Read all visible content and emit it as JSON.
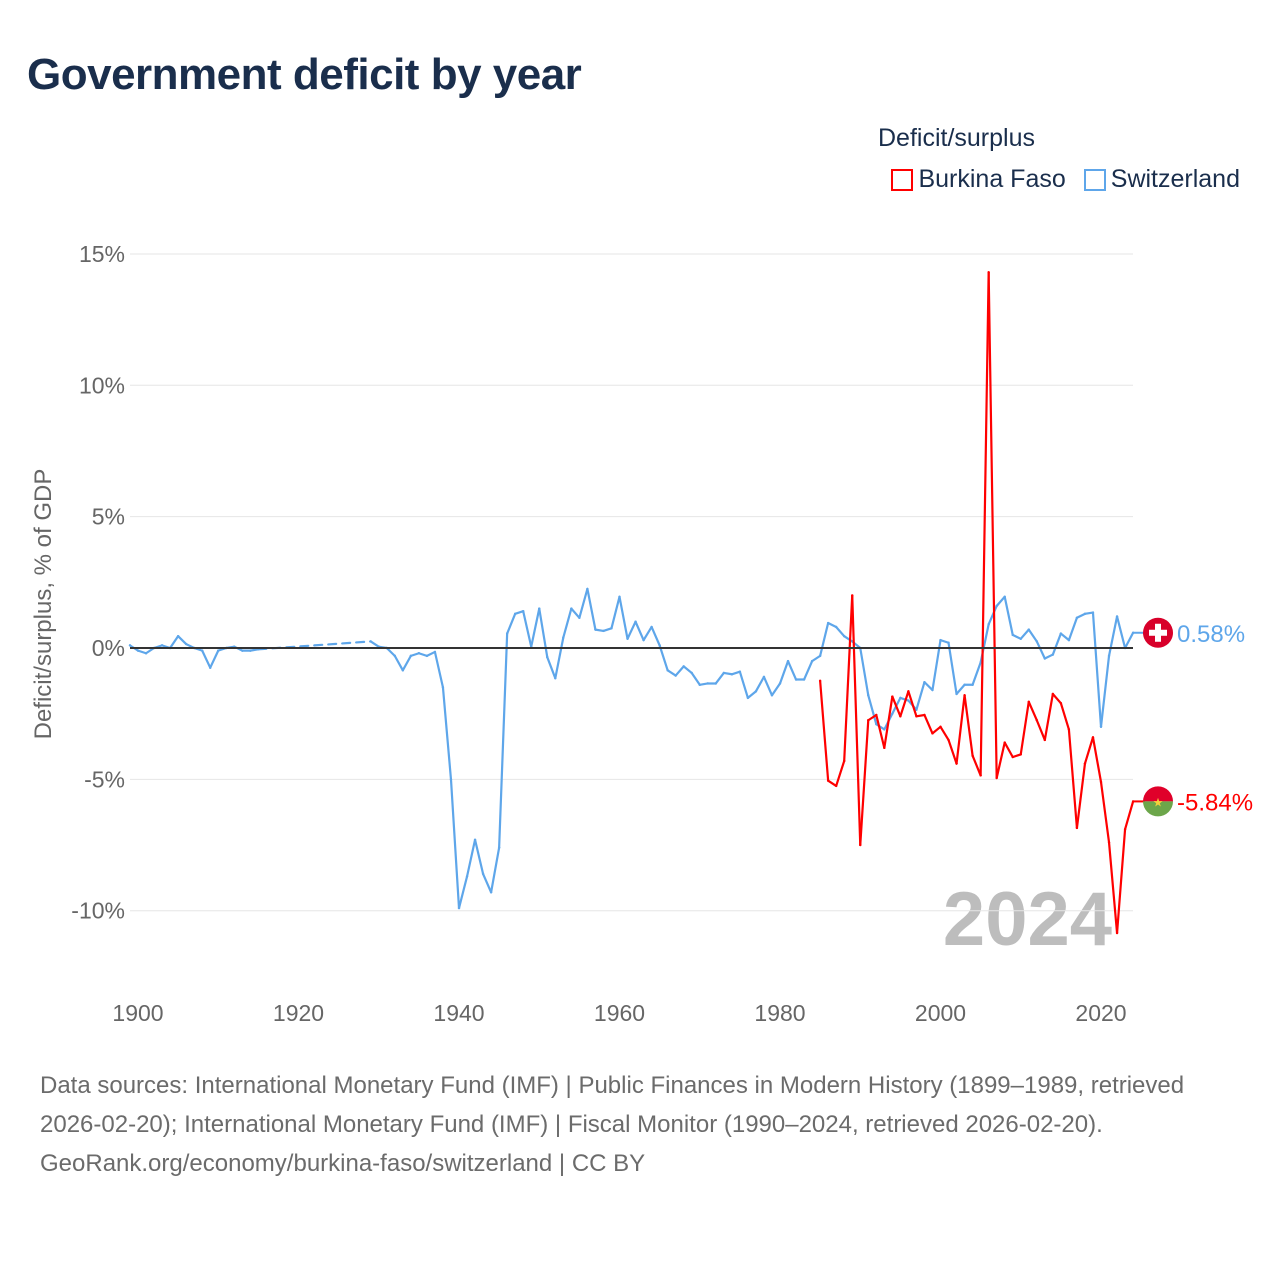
{
  "title": "Government deficit by year",
  "legend": {
    "title": "Deficit/surplus",
    "items": [
      {
        "label": "Burkina Faso",
        "color": "#ff0000"
      },
      {
        "label": "Switzerland",
        "color": "#5ea6ea"
      }
    ]
  },
  "chart_data": {
    "type": "line",
    "title": "Government deficit by year",
    "ylabel": "Deficit/surplus, % of GDP",
    "xlabel": "",
    "xlim": [
      1899,
      2024
    ],
    "ylim": [
      -12.5,
      15.5
    ],
    "x_ticks": [
      1900,
      1920,
      1940,
      1960,
      1980,
      2000,
      2020
    ],
    "y_ticks": [
      {
        "value": 15,
        "label": "15%"
      },
      {
        "value": 10,
        "label": "10%"
      },
      {
        "value": 5,
        "label": "5%"
      },
      {
        "value": 0,
        "label": "0%"
      },
      {
        "value": -5,
        "label": "-5%"
      },
      {
        "value": -10,
        "label": "-10%"
      }
    ],
    "grid": true,
    "legend_position": "top-right",
    "year_watermark": "2024",
    "series": [
      {
        "name": "Switzerland",
        "color": "#5ea6ea",
        "end_label": "0.58%",
        "flag": "switzerland-flag",
        "x": [
          1899,
          1900,
          1901,
          1902,
          1903,
          1904,
          1905,
          1906,
          1907,
          1908,
          1909,
          1910,
          1911,
          1912,
          1913,
          1914,
          1915,
          1929,
          1930,
          1931,
          1932,
          1933,
          1934,
          1935,
          1936,
          1937,
          1938,
          1939,
          1940,
          1941,
          1942,
          1943,
          1944,
          1945,
          1946,
          1947,
          1948,
          1949,
          1950,
          1951,
          1952,
          1953,
          1954,
          1955,
          1956,
          1957,
          1958,
          1959,
          1960,
          1961,
          1962,
          1963,
          1964,
          1965,
          1966,
          1967,
          1968,
          1969,
          1970,
          1971,
          1972,
          1973,
          1974,
          1975,
          1976,
          1977,
          1978,
          1979,
          1980,
          1981,
          1982,
          1983,
          1984,
          1985,
          1986,
          1987,
          1988,
          1989,
          1990,
          1991,
          1992,
          1993,
          1994,
          1995,
          1996,
          1997,
          1998,
          1999,
          2000,
          2001,
          2002,
          2003,
          2004,
          2005,
          2006,
          2007,
          2008,
          2009,
          2010,
          2011,
          2012,
          2013,
          2014,
          2015,
          2016,
          2017,
          2018,
          2019,
          2020,
          2021,
          2022,
          2023,
          2024
        ],
        "values": [
          0.1,
          -0.1,
          -0.2,
          0,
          0.1,
          0,
          0.45,
          0.15,
          0,
          -0.1,
          -0.75,
          -0.1,
          0,
          0.05,
          -0.1,
          -0.1,
          -0.05,
          0.25,
          0.05,
          0,
          -0.3,
          -0.85,
          -0.3,
          -0.2,
          -0.3,
          -0.15,
          -1.5,
          -5,
          -9.9,
          -8.7,
          -7.3,
          -8.6,
          -9.3,
          -7.6,
          0.55,
          1.3,
          1.4,
          0.05,
          1.5,
          -0.35,
          -1.15,
          0.4,
          1.5,
          1.15,
          2.25,
          0.7,
          0.65,
          0.75,
          1.95,
          0.35,
          1.0,
          0.3,
          0.8,
          0.1,
          -0.85,
          -1.05,
          -0.7,
          -0.95,
          -1.4,
          -1.35,
          -1.35,
          -0.95,
          -1.0,
          -0.9,
          -1.9,
          -1.65,
          -1.1,
          -1.8,
          -1.35,
          -0.5,
          -1.2,
          -1.2,
          -0.5,
          -0.3,
          0.95,
          0.8,
          0.45,
          0.25,
          0,
          -1.8,
          -2.9,
          -3.1,
          -2.5,
          -1.9,
          -2.0,
          -2.35,
          -1.3,
          -1.6,
          0.3,
          0.2,
          -1.75,
          -1.4,
          -1.4,
          -0.55,
          0.9,
          1.6,
          1.95,
          0.5,
          0.35,
          0.7,
          0.25,
          -0.4,
          -0.25,
          0.55,
          0.3,
          1.15,
          1.3,
          1.35,
          -3.0,
          -0.3,
          1.2,
          0,
          0.58
        ]
      },
      {
        "name": "Burkina Faso",
        "color": "#ff0000",
        "end_label": "-5.84%",
        "flag": "burkina-faso-flag",
        "x": [
          1985,
          1986,
          1987,
          1988,
          1989,
          1990,
          1991,
          1992,
          1993,
          1994,
          1995,
          1996,
          1997,
          1998,
          1999,
          2000,
          2001,
          2002,
          2003,
          2004,
          2005,
          2006,
          2007,
          2008,
          2009,
          2010,
          2011,
          2012,
          2013,
          2014,
          2015,
          2016,
          2017,
          2018,
          2019,
          2020,
          2021,
          2022,
          2023,
          2024
        ],
        "values": [
          -1.25,
          -5.05,
          -5.25,
          -4.3,
          2.0,
          -7.5,
          -2.75,
          -2.55,
          -3.8,
          -1.85,
          -2.6,
          -1.65,
          -2.6,
          -2.55,
          -3.25,
          -3.0,
          -3.5,
          -4.4,
          -1.8,
          -4.1,
          -4.85,
          14.3,
          -4.95,
          -3.6,
          -4.15,
          -4.05,
          -2.05,
          -2.75,
          -3.5,
          -1.75,
          -2.1,
          -3.1,
          -6.85,
          -4.4,
          -3.4,
          -5.1,
          -7.4,
          -10.85,
          -6.9,
          -5.84
        ]
      }
    ]
  },
  "footer": {
    "sources": "Data sources: International Monetary Fund (IMF) | Public Finances in Modern History (1899–1989, retrieved 2026-02-20); International Monetary Fund (IMF) | Fiscal Monitor (1990–2024, retrieved 2026-02-20).",
    "credit": "GeoRank.org/economy/burkina-faso/switzerland | CC BY"
  }
}
